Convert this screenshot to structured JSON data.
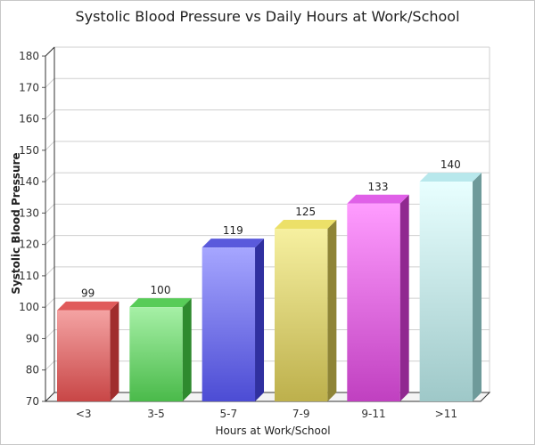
{
  "chart_data": {
    "type": "bar",
    "title": "Systolic Blood Pressure vs Daily Hours at Work/School",
    "xlabel": "Hours at Work/School",
    "ylabel": "Systolic Blood Pressure",
    "categories": [
      "<3",
      "3-5",
      "5-7",
      "7-9",
      "9-11",
      ">11"
    ],
    "values": [
      99,
      100,
      119,
      125,
      133,
      140
    ],
    "ylim": [
      70,
      180
    ],
    "yticks": [
      70,
      80,
      90,
      100,
      110,
      120,
      130,
      140,
      150,
      160,
      170,
      180
    ],
    "grid": true,
    "legend": "none",
    "bar_colors": [
      {
        "top": "#f4a3a3",
        "bottom": "#c84646",
        "side": "#a02d2d",
        "cap": "#e05a5a"
      },
      {
        "top": "#a6f0a6",
        "bottom": "#4aba4a",
        "side": "#2e8a2e",
        "cap": "#58cc58"
      },
      {
        "top": "#a6a6ff",
        "bottom": "#4c4cd4",
        "side": "#3030a0",
        "cap": "#5a5adc"
      },
      {
        "top": "#f6f0a0",
        "bottom": "#bdb04c",
        "side": "#8e8436",
        "cap": "#ece068"
      },
      {
        "top": "#ff9cff",
        "bottom": "#c040c0",
        "side": "#902890",
        "cap": "#e060e8"
      },
      {
        "top": "#e8ffff",
        "bottom": "#9ec8c8",
        "side": "#6e9a9a",
        "cap": "#b8e8ec"
      }
    ]
  }
}
